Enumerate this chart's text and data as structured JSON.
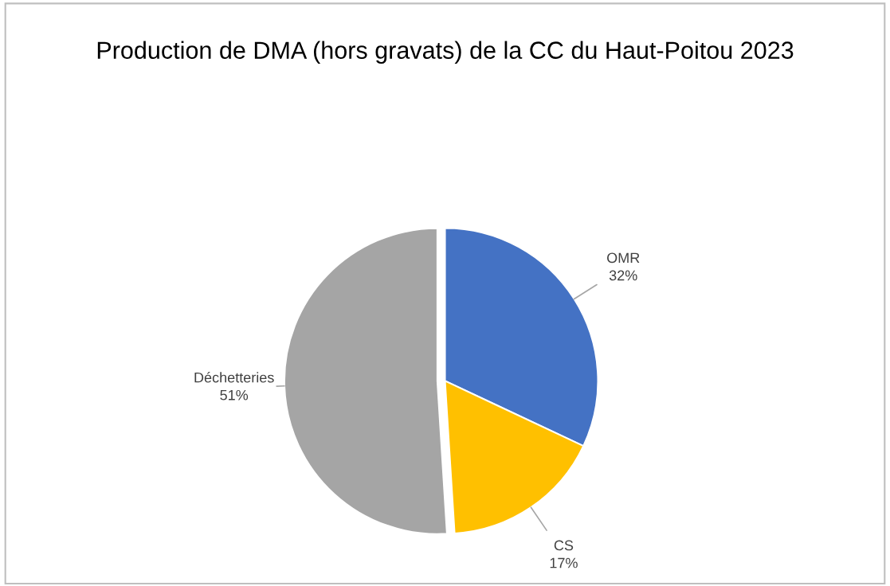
{
  "chart_data": {
    "type": "pie",
    "title": "Production de DMA (hors gravats) de la CC du Haut-Poitou 2023",
    "categories": [
      "OMR",
      "CS",
      "Déchetteries"
    ],
    "values": [
      32,
      17,
      51
    ],
    "value_labels": [
      "32%",
      "17%",
      "51%"
    ],
    "colors": [
      "#4472c4",
      "#ffc000",
      "#a5a5a5"
    ],
    "legend": false
  }
}
